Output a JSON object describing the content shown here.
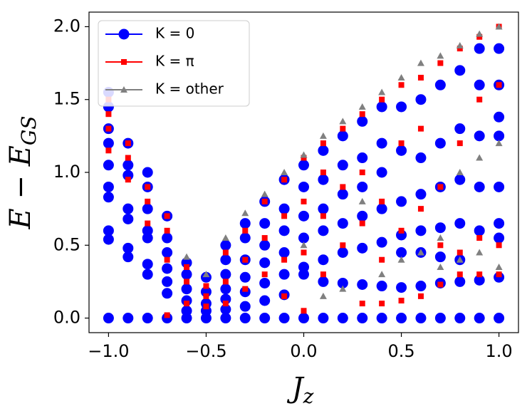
{
  "chart_data": {
    "type": "scatter",
    "x_label": {
      "main": "J",
      "sub": "z"
    },
    "y_label": {
      "main": "E − E",
      "sub": "GS"
    },
    "xlim": [
      -1.1,
      1.1
    ],
    "ylim": [
      -0.1,
      2.1
    ],
    "xticks": [
      {
        "value": -1,
        "label": "−1.0"
      },
      {
        "value": -0.5,
        "label": "−0.5"
      },
      {
        "value": 0,
        "label": "0.0"
      },
      {
        "value": 0.5,
        "label": "0.5"
      },
      {
        "value": 1,
        "label": "1.0"
      }
    ],
    "yticks": [
      {
        "value": 0,
        "label": "0.0"
      },
      {
        "value": 0.5,
        "label": "0.5"
      },
      {
        "value": 1,
        "label": "1.0"
      },
      {
        "value": 1.5,
        "label": "1.5"
      },
      {
        "value": 2,
        "label": "2.0"
      }
    ],
    "legend": "upper left",
    "series": [
      {
        "name": "K = 0",
        "color": "#0000ff",
        "marker": "circle",
        "x": [
          -1,
          -1,
          -1,
          -1,
          -1,
          -1,
          -1,
          -1,
          -1,
          -1,
          -0.9,
          -0.9,
          -0.9,
          -0.9,
          -0.9,
          -0.9,
          -0.9,
          -0.9,
          -0.8,
          -0.8,
          -0.8,
          -0.8,
          -0.8,
          -0.8,
          -0.8,
          -0.8,
          -0.7,
          -0.7,
          -0.7,
          -0.7,
          -0.7,
          -0.7,
          -0.7,
          -0.6,
          -0.6,
          -0.6,
          -0.6,
          -0.6,
          -0.6,
          -0.5,
          -0.5,
          -0.5,
          -0.5,
          -0.5,
          -0.4,
          -0.4,
          -0.4,
          -0.4,
          -0.4,
          -0.4,
          -0.4,
          -0.3,
          -0.3,
          -0.3,
          -0.3,
          -0.3,
          -0.3,
          -0.3,
          -0.2,
          -0.2,
          -0.2,
          -0.2,
          -0.2,
          -0.2,
          -0.2,
          -0.1,
          -0.1,
          -0.1,
          -0.1,
          -0.1,
          -0.1,
          -0.1,
          0,
          0,
          0,
          0,
          0,
          0,
          0,
          0.1,
          0.1,
          0.1,
          0.1,
          0.1,
          0.1,
          0.1,
          0.2,
          0.2,
          0.2,
          0.2,
          0.2,
          0.2,
          0.2,
          0.3,
          0.3,
          0.3,
          0.3,
          0.3,
          0.3,
          0.3,
          0.4,
          0.4,
          0.4,
          0.4,
          0.4,
          0.4,
          0.4,
          0.5,
          0.5,
          0.5,
          0.5,
          0.5,
          0.5,
          0.5,
          0.6,
          0.6,
          0.6,
          0.6,
          0.6,
          0.6,
          0.6,
          0.7,
          0.7,
          0.7,
          0.7,
          0.7,
          0.7,
          0.7,
          0.8,
          0.8,
          0.8,
          0.8,
          0.8,
          0.8,
          0.8,
          0.9,
          0.9,
          0.9,
          0.9,
          0.9,
          0.9,
          0.9,
          1,
          1,
          1,
          1,
          1,
          1,
          1,
          1,
          1
        ],
        "values": [
          0,
          0.54,
          0.6,
          0.83,
          0.9,
          1.05,
          1.2,
          1.3,
          1.45,
          1.55,
          0,
          0.42,
          0.48,
          0.68,
          0.75,
          0.98,
          1.05,
          1.2,
          0,
          0.3,
          0.37,
          0.55,
          0.6,
          0.75,
          0.9,
          1.0,
          0,
          0.17,
          0.25,
          0.34,
          0.45,
          0.55,
          0.7,
          0,
          0.05,
          0.12,
          0.2,
          0.3,
          0.38,
          0,
          0.05,
          0.1,
          0.18,
          0.28,
          0,
          0.06,
          0.13,
          0.2,
          0.3,
          0.4,
          0.5,
          0,
          0.08,
          0.18,
          0.28,
          0.4,
          0.55,
          0.65,
          0,
          0.12,
          0.24,
          0.38,
          0.5,
          0.65,
          0.8,
          0,
          0.16,
          0.3,
          0.45,
          0.6,
          0.75,
          0.95,
          0,
          0.3,
          0.35,
          0.55,
          0.7,
          0.9,
          1.05,
          0,
          0.25,
          0.4,
          0.6,
          0.75,
          0.95,
          1.15,
          0,
          0.24,
          0.45,
          0.65,
          0.85,
          1.05,
          1.25,
          0,
          0.23,
          0.48,
          0.7,
          0.9,
          1.1,
          1.35,
          0,
          0.22,
          0.52,
          0.75,
          1.0,
          1.2,
          1.45,
          0,
          0.21,
          0.45,
          0.57,
          0.8,
          1.15,
          1.45,
          0,
          0.22,
          0.45,
          0.6,
          0.85,
          1.1,
          1.5,
          0,
          0.24,
          0.42,
          0.62,
          0.9,
          1.2,
          1.6,
          0,
          0.25,
          0.4,
          0.65,
          0.95,
          1.3,
          1.7,
          0,
          0.26,
          0.6,
          0.9,
          1.25,
          1.6,
          1.85,
          0,
          0.28,
          0.55,
          0.65,
          0.9,
          1.25,
          1.38,
          1.6,
          1.85
        ]
      },
      {
        "name": "K = π",
        "color": "#ff0000",
        "marker": "square",
        "x": [
          -1,
          -1,
          -1,
          -1,
          -0.9,
          -0.9,
          -0.9,
          -0.8,
          -0.8,
          -0.8,
          -0.7,
          -0.7,
          -0.7,
          -0.7,
          -0.6,
          -0.6,
          -0.6,
          -0.5,
          -0.5,
          -0.5,
          -0.4,
          -0.4,
          -0.4,
          -0.3,
          -0.3,
          -0.3,
          -0.2,
          -0.2,
          -0.2,
          -0.1,
          -0.1,
          -0.1,
          -0.1,
          0,
          0,
          0,
          0,
          0.1,
          0.1,
          0.1,
          0.1,
          0.2,
          0.2,
          0.2,
          0.3,
          0.3,
          0.3,
          0.3,
          0.4,
          0.4,
          0.4,
          0.4,
          0.5,
          0.5,
          0.5,
          0.5,
          0.6,
          0.6,
          0.6,
          0.6,
          0.7,
          0.7,
          0.7,
          0.7,
          0.8,
          0.8,
          0.8,
          0.8,
          0.9,
          0.9,
          0.9,
          0.9,
          1,
          1,
          1,
          1
        ],
        "values": [
          1.15,
          1.3,
          1.4,
          1.5,
          0.95,
          1.1,
          1.2,
          0.65,
          0.8,
          0.9,
          0.02,
          0.4,
          0.6,
          0.7,
          0.1,
          0.25,
          0.35,
          0.08,
          0.15,
          0.22,
          0.1,
          0.25,
          0.45,
          0.2,
          0.4,
          0.6,
          0.3,
          0.55,
          0.8,
          0.15,
          0.4,
          0.7,
          0.95,
          0.05,
          0.45,
          0.8,
          1.1,
          0.3,
          0.7,
          1.0,
          1.2,
          0.5,
          0.9,
          1.3,
          0.1,
          0.65,
          1.0,
          1.4,
          0.1,
          0.4,
          0.8,
          1.5,
          0.12,
          0.6,
          1.2,
          1.6,
          0.15,
          0.75,
          1.3,
          1.65,
          0.23,
          0.5,
          0.9,
          1.75,
          0.3,
          0.45,
          1.2,
          1.85,
          0.3,
          0.55,
          1.5,
          1.93,
          0.3,
          0.5,
          1.6,
          2.0
        ]
      },
      {
        "name": "K = other",
        "color": "#808080",
        "marker": "triangle",
        "x": [
          -0.6,
          -0.5,
          -0.4,
          -0.3,
          -0.2,
          -0.1,
          0,
          0,
          0.1,
          0.1,
          0.2,
          0.2,
          0.3,
          0.3,
          0.4,
          0.4,
          0.5,
          0.5,
          0.6,
          0.6,
          0.7,
          0.7,
          0.7,
          0.8,
          0.8,
          0.8,
          0.9,
          0.9,
          0.9,
          1,
          1,
          1
        ],
        "values": [
          0.42,
          0.3,
          0.55,
          0.72,
          0.85,
          1.0,
          1.12,
          0.5,
          1.25,
          0.15,
          1.35,
          0.2,
          1.45,
          0.8,
          1.55,
          0.3,
          1.65,
          0.4,
          1.75,
          0.45,
          1.8,
          0.55,
          0.35,
          1.87,
          0.4,
          1.0,
          1.95,
          0.45,
          1.1,
          2.0,
          0.35,
          1.2
        ]
      }
    ]
  }
}
